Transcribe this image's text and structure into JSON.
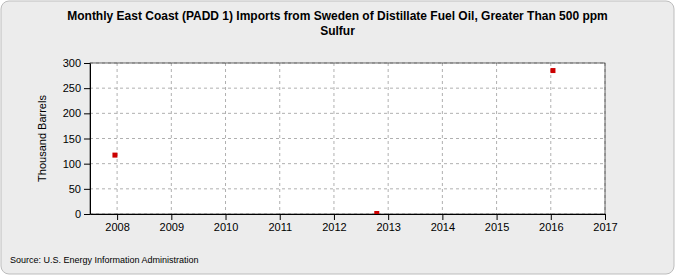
{
  "chart_data": {
    "type": "scatter",
    "title": "Monthly East Coast (PADD 1) Imports from Sweden of Distillate Fuel Oil, Greater Than 500 ppm Sulfur",
    "y_label": "Thousand Barrels",
    "annotations": [
      "Source: U.S. Energy Information Administration"
    ],
    "x": [
      2007.96,
      2012.79,
      2016.04
    ],
    "values": [
      117,
      1,
      285
    ],
    "color": "#cc0000",
    "marker": "square",
    "xlim": [
      2007.5,
      2017
    ],
    "xticks": [
      2008,
      2009,
      2010,
      2011,
      2012,
      2013,
      2014,
      2015,
      2016,
      2017
    ],
    "ylim": [
      0,
      300
    ],
    "yticks": [
      0,
      50,
      100,
      150,
      200,
      250,
      300
    ],
    "grid": true
  }
}
